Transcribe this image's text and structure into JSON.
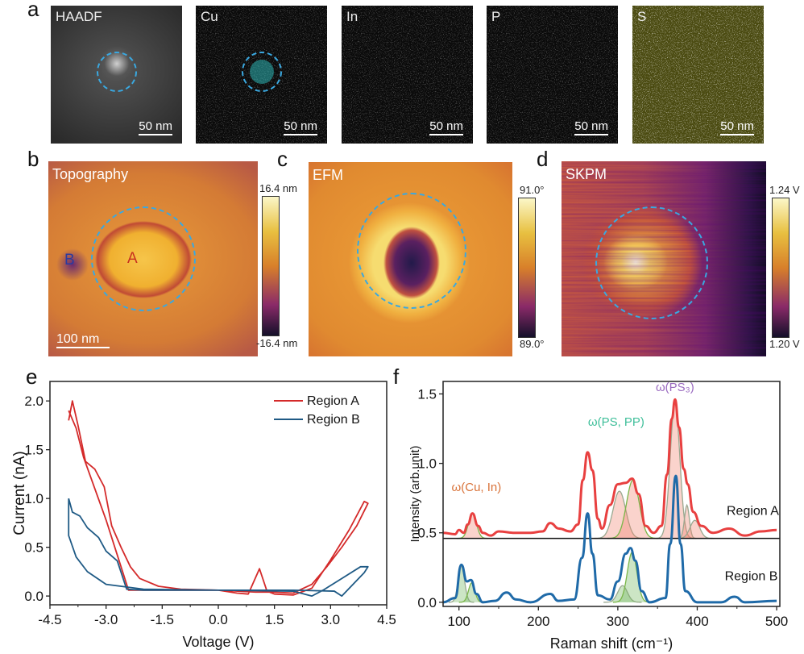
{
  "panel_labels": {
    "a": "a",
    "b": "b",
    "c": "c",
    "d": "d",
    "e": "e",
    "f": "f"
  },
  "eds_maps": [
    {
      "label": "HAADF",
      "scale": "50 nm",
      "color": "#bbbbbb"
    },
    {
      "label": "Cu",
      "scale": "50 nm",
      "color": "#2ec4c4"
    },
    {
      "label": "In",
      "scale": "50 nm",
      "color": "#c0287a"
    },
    {
      "label": "P",
      "scale": "50 nm",
      "color": "#c060c0"
    },
    {
      "label": "S",
      "scale": "50 nm",
      "color": "#d8d828"
    }
  ],
  "afm": {
    "topography": {
      "label": "Topography",
      "cmax": "16.4 nm",
      "cmin": "-16.4 nm",
      "scale": "100 nm",
      "regionA": "A",
      "regionB": "B"
    },
    "efm": {
      "label": "EFM",
      "cmax": "91.0°",
      "cmin": "89.0°"
    },
    "skpm": {
      "label": "SKPM",
      "cmax": "1.24 V",
      "cmin": "1.20 V"
    },
    "circle_color": "#3aa8e0"
  },
  "chart_data": [
    {
      "type": "line",
      "xlabel": "Voltage (V)",
      "ylabel": "Current (nA)",
      "xlim": [
        -4.5,
        4.5
      ],
      "ylim": [
        -0.09,
        2.2
      ],
      "xticks": [
        -4.5,
        -3.0,
        -1.5,
        0.0,
        1.5,
        3.0,
        4.5
      ],
      "xtick_labels": [
        "-4.5",
        "-3.0",
        "-1.5",
        "0.0",
        "1.5",
        "3.0",
        "4.5"
      ],
      "yticks": [
        0.0,
        0.5,
        1.0,
        1.5,
        2.0
      ],
      "ytick_labels": [
        "0.0",
        "0.5",
        "1.0",
        "1.5",
        "2.0"
      ],
      "legend_position": "top-right",
      "grid": false,
      "series": [
        {
          "name": "Region A",
          "color": "#d42a2a",
          "points": [
            [
              -4,
              1.8
            ],
            [
              -3.9,
              2.0
            ],
            [
              -3.75,
              1.75
            ],
            [
              -3.55,
              1.38
            ],
            [
              -3.3,
              1.3
            ],
            [
              -3.05,
              1.12
            ],
            [
              -2.85,
              0.72
            ],
            [
              -2.6,
              0.5
            ],
            [
              -2.35,
              0.3
            ],
            [
              -2.1,
              0.18
            ],
            [
              -1.6,
              0.1
            ],
            [
              -1.0,
              0.07
            ],
            [
              0,
              0.06
            ],
            [
              0.5,
              0.03
            ],
            [
              0.8,
              0.02
            ],
            [
              0.95,
              0.15
            ],
            [
              1.1,
              0.28
            ],
            [
              1.3,
              0.05
            ],
            [
              1.5,
              0.02
            ],
            [
              2.0,
              0.01
            ],
            [
              2.5,
              0.08
            ],
            [
              3.0,
              0.37
            ],
            [
              3.5,
              0.68
            ],
            [
              3.9,
              0.97
            ],
            [
              4.0,
              0.95
            ],
            [
              3.7,
              0.72
            ],
            [
              3.3,
              0.5
            ],
            [
              2.9,
              0.3
            ],
            [
              2.5,
              0.12
            ],
            [
              2.0,
              0.03
            ],
            [
              1.5,
              0.04
            ],
            [
              1.0,
              0.04
            ],
            [
              0,
              0.06
            ],
            [
              -1.5,
              0.06
            ],
            [
              -2.4,
              0.06
            ],
            [
              -2.7,
              0.42
            ],
            [
              -3.0,
              0.78
            ],
            [
              -3.3,
              1.1
            ],
            [
              -3.6,
              1.42
            ],
            [
              -3.8,
              1.72
            ],
            [
              -4.0,
              1.9
            ]
          ]
        },
        {
          "name": "Region B",
          "color": "#1f5a85",
          "points": [
            [
              -4,
              1.0
            ],
            [
              -3.9,
              0.86
            ],
            [
              -3.7,
              0.82
            ],
            [
              -3.5,
              0.7
            ],
            [
              -3.2,
              0.6
            ],
            [
              -3.0,
              0.46
            ],
            [
              -2.7,
              0.36
            ],
            [
              -2.45,
              0.07
            ],
            [
              -2.0,
              0.06
            ],
            [
              0,
              0.06
            ],
            [
              2.0,
              0.05
            ],
            [
              2.5,
              0.0
            ],
            [
              2.8,
              0.06
            ],
            [
              3.3,
              0.18
            ],
            [
              3.8,
              0.3
            ],
            [
              4.0,
              0.3
            ],
            [
              3.9,
              0.24
            ],
            [
              3.6,
              0.12
            ],
            [
              3.3,
              0.0
            ],
            [
              3.1,
              0.05
            ],
            [
              2.0,
              0.06
            ],
            [
              0,
              0.06
            ],
            [
              -2.0,
              0.07
            ],
            [
              -3.0,
              0.12
            ],
            [
              -3.5,
              0.25
            ],
            [
              -3.8,
              0.4
            ],
            [
              -4.0,
              0.62
            ],
            [
              -4.0,
              1.0
            ]
          ]
        }
      ]
    },
    {
      "type": "line",
      "xlabel": "Raman shift (cm⁻¹)",
      "ylabel": "Intensity (arb.unit)",
      "xlim": [
        80,
        504
      ],
      "ylim": [
        -0.03,
        1.59
      ],
      "xticks": [
        100,
        200,
        300,
        400,
        500
      ],
      "xtick_labels": [
        "100",
        "200",
        "300",
        "400",
        "500"
      ],
      "yticks": [
        0.0,
        0.5,
        1.0,
        1.5
      ],
      "ytick_labels": [
        "0.0",
        "0.5",
        "1.0",
        "1.5"
      ],
      "grid": false,
      "separator_y": 0.46,
      "annotations": [
        {
          "text": "ω(Cu, In)",
          "x": 122,
          "y": 0.8,
          "color": "#d9733a"
        },
        {
          "text": "ω(PS, PP)",
          "x": 298,
          "y": 1.27,
          "color": "#3fbf9a"
        },
        {
          "text": "ω(PS₃)",
          "x": 372,
          "y": 1.52,
          "color": "#9a6ac0"
        },
        {
          "text": "Region A",
          "x": 470,
          "y": 0.63,
          "color": "#111111"
        },
        {
          "text": "Region B",
          "x": 468,
          "y": 0.16,
          "color": "#111111"
        }
      ],
      "series": [
        {
          "name": "Region A",
          "color": "#e84040",
          "points": [
            [
              80,
              0.5
            ],
            [
              95,
              0.49
            ],
            [
              100,
              0.52
            ],
            [
              106,
              0.5
            ],
            [
              111,
              0.56
            ],
            [
              117,
              0.64
            ],
            [
              124,
              0.55
            ],
            [
              130,
              0.5
            ],
            [
              140,
              0.48
            ],
            [
              150,
              0.51
            ],
            [
              170,
              0.5
            ],
            [
              190,
              0.5
            ],
            [
              205,
              0.51
            ],
            [
              215,
              0.57
            ],
            [
              226,
              0.53
            ],
            [
              240,
              0.51
            ],
            [
              250,
              0.56
            ],
            [
              256,
              0.88
            ],
            [
              262,
              1.08
            ],
            [
              268,
              0.95
            ],
            [
              275,
              0.6
            ],
            [
              280,
              0.53
            ],
            [
              290,
              0.7
            ],
            [
              300,
              0.85
            ],
            [
              310,
              0.86
            ],
            [
              318,
              0.89
            ],
            [
              326,
              0.78
            ],
            [
              335,
              0.55
            ],
            [
              345,
              0.5
            ],
            [
              355,
              0.55
            ],
            [
              362,
              0.92
            ],
            [
              368,
              1.32
            ],
            [
              372,
              1.46
            ],
            [
              377,
              1.26
            ],
            [
              383,
              0.96
            ],
            [
              388,
              0.85
            ],
            [
              395,
              0.65
            ],
            [
              405,
              0.55
            ],
            [
              420,
              0.5
            ],
            [
              440,
              0.53
            ],
            [
              460,
              0.48
            ],
            [
              480,
              0.51
            ],
            [
              500,
              0.52
            ]
          ]
        },
        {
          "name": "Region B",
          "color": "#1f6aa8",
          "points": [
            [
              80,
              0.0
            ],
            [
              95,
              0.03
            ],
            [
              103,
              0.27
            ],
            [
              110,
              0.15
            ],
            [
              115,
              0.16
            ],
            [
              122,
              0.06
            ],
            [
              130,
              0.0
            ],
            [
              145,
              0.01
            ],
            [
              160,
              0.07
            ],
            [
              172,
              0.02
            ],
            [
              190,
              0.0
            ],
            [
              215,
              0.06
            ],
            [
              225,
              0.01
            ],
            [
              245,
              0.02
            ],
            [
              255,
              0.32
            ],
            [
              262,
              0.64
            ],
            [
              268,
              0.35
            ],
            [
              275,
              0.05
            ],
            [
              290,
              0.02
            ],
            [
              300,
              0.15
            ],
            [
              310,
              0.35
            ],
            [
              316,
              0.39
            ],
            [
              322,
              0.3
            ],
            [
              330,
              0.08
            ],
            [
              340,
              0.0
            ],
            [
              360,
              0.03
            ],
            [
              366,
              0.42
            ],
            [
              373,
              0.91
            ],
            [
              379,
              0.42
            ],
            [
              385,
              0.08
            ],
            [
              400,
              0.0
            ],
            [
              430,
              0.0
            ],
            [
              447,
              0.04
            ],
            [
              460,
              0.0
            ],
            [
              500,
              0.01
            ]
          ]
        }
      ],
      "fit_peaks": [
        {
          "group": "Region A",
          "baseline": 0.46,
          "center": 117,
          "height": 0.18,
          "sigma": 5,
          "color": "#7ab648"
        },
        {
          "group": "Region A",
          "baseline": 0.46,
          "center": 302,
          "height": 0.34,
          "sigma": 8,
          "color": "#9aa890"
        },
        {
          "group": "Region A",
          "baseline": 0.46,
          "center": 319,
          "height": 0.42,
          "sigma": 8,
          "color": "#7ab648"
        },
        {
          "group": "Region A",
          "baseline": 0.46,
          "center": 372,
          "height": 0.98,
          "sigma": 6,
          "color": "#9aa890"
        },
        {
          "group": "Region A",
          "baseline": 0.46,
          "center": 387,
          "height": 0.24,
          "sigma": 3,
          "color": "#9aa890"
        },
        {
          "group": "Region A",
          "baseline": 0.46,
          "center": 397,
          "height": 0.13,
          "sigma": 6,
          "color": "#9aa890"
        },
        {
          "group": "Region B",
          "baseline": 0.0,
          "center": 103,
          "height": 0.26,
          "sigma": 4,
          "color": "#9aa890"
        },
        {
          "group": "Region B",
          "baseline": 0.0,
          "center": 116,
          "height": 0.14,
          "sigma": 4,
          "color": "#7ab648"
        },
        {
          "group": "Region B",
          "baseline": 0.0,
          "center": 306,
          "height": 0.12,
          "sigma": 6,
          "color": "#9aa890"
        },
        {
          "group": "Region B",
          "baseline": 0.0,
          "center": 318,
          "height": 0.36,
          "sigma": 6,
          "color": "#7ab648"
        }
      ]
    }
  ]
}
